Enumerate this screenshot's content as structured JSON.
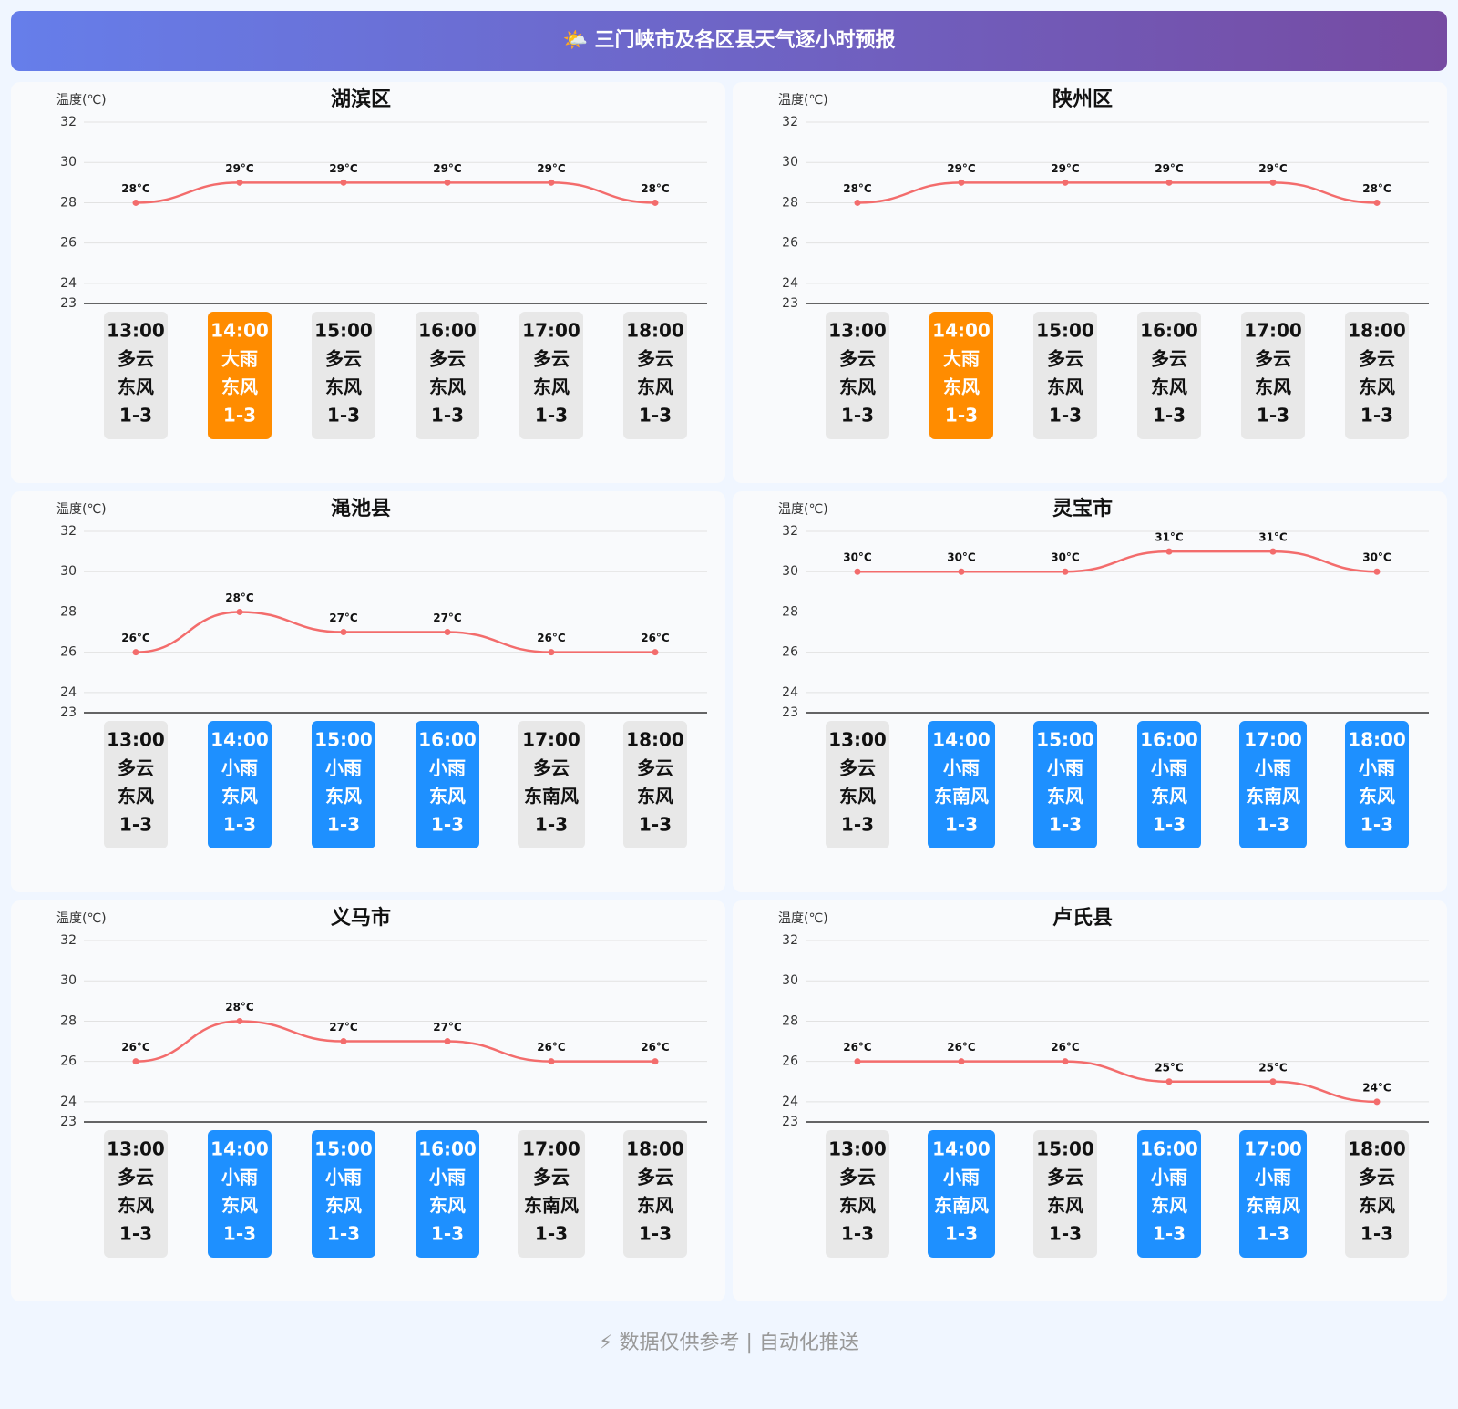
{
  "header": {
    "title": "🌤️ 三门峡市及各区县天气逐小时预报"
  },
  "chart_data": [
    {
      "type": "line",
      "title": "湖滨区",
      "y_label": "温度(℃)",
      "ylim": [
        23,
        32
      ],
      "yticks": [
        23,
        24,
        26,
        28,
        30,
        32
      ],
      "grid": true,
      "categories": [
        "13:00",
        "14:00",
        "15:00",
        "16:00",
        "17:00",
        "18:00"
      ],
      "series": [
        {
          "color": "#f36c6c",
          "values": [
            28,
            29,
            29,
            29,
            29,
            28
          ],
          "value_labels": [
            "28°C",
            "29°C",
            "29°C",
            "29°C",
            "29°C",
            "28°C"
          ]
        }
      ],
      "weather": [
        "多云",
        "大雨",
        "多云",
        "多云",
        "多云",
        "多云"
      ],
      "wind": [
        "东风",
        "东风",
        "东风",
        "东风",
        "东风",
        "东风"
      ],
      "level": [
        "1-3",
        "1-3",
        "1-3",
        "1-3",
        "1-3",
        "1-3"
      ],
      "card_colors": [
        "#e8e8e8",
        "#ff8c00",
        "#e8e8e8",
        "#e8e8e8",
        "#e8e8e8",
        "#e8e8e8"
      ]
    },
    {
      "type": "line",
      "title": "陕州区",
      "y_label": "温度(℃)",
      "ylim": [
        23,
        32
      ],
      "yticks": [
        23,
        24,
        26,
        28,
        30,
        32
      ],
      "grid": true,
      "categories": [
        "13:00",
        "14:00",
        "15:00",
        "16:00",
        "17:00",
        "18:00"
      ],
      "series": [
        {
          "color": "#f36c6c",
          "values": [
            28,
            29,
            29,
            29,
            29,
            28
          ],
          "value_labels": [
            "28°C",
            "29°C",
            "29°C",
            "29°C",
            "29°C",
            "28°C"
          ]
        }
      ],
      "weather": [
        "多云",
        "大雨",
        "多云",
        "多云",
        "多云",
        "多云"
      ],
      "wind": [
        "东风",
        "东风",
        "东风",
        "东风",
        "东风",
        "东风"
      ],
      "level": [
        "1-3",
        "1-3",
        "1-3",
        "1-3",
        "1-3",
        "1-3"
      ],
      "card_colors": [
        "#e8e8e8",
        "#ff8c00",
        "#e8e8e8",
        "#e8e8e8",
        "#e8e8e8",
        "#e8e8e8"
      ]
    },
    {
      "type": "line",
      "title": "渑池县",
      "y_label": "温度(℃)",
      "ylim": [
        23,
        32
      ],
      "yticks": [
        23,
        24,
        26,
        28,
        30,
        32
      ],
      "grid": true,
      "categories": [
        "13:00",
        "14:00",
        "15:00",
        "16:00",
        "17:00",
        "18:00"
      ],
      "series": [
        {
          "color": "#f36c6c",
          "values": [
            26,
            28,
            27,
            27,
            26,
            26
          ],
          "value_labels": [
            "26°C",
            "28°C",
            "27°C",
            "27°C",
            "26°C",
            "26°C"
          ]
        }
      ],
      "weather": [
        "多云",
        "小雨",
        "小雨",
        "小雨",
        "多云",
        "多云"
      ],
      "wind": [
        "东风",
        "东风",
        "东风",
        "东风",
        "东南风",
        "东风"
      ],
      "level": [
        "1-3",
        "1-3",
        "1-3",
        "1-3",
        "1-3",
        "1-3"
      ],
      "card_colors": [
        "#e8e8e8",
        "#1e90ff",
        "#1e90ff",
        "#1e90ff",
        "#e8e8e8",
        "#e8e8e8"
      ]
    },
    {
      "type": "line",
      "title": "灵宝市",
      "y_label": "温度(℃)",
      "ylim": [
        23,
        32
      ],
      "yticks": [
        23,
        24,
        26,
        28,
        30,
        32
      ],
      "grid": true,
      "categories": [
        "13:00",
        "14:00",
        "15:00",
        "16:00",
        "17:00",
        "18:00"
      ],
      "series": [
        {
          "color": "#f36c6c",
          "values": [
            30,
            30,
            30,
            31,
            31,
            30
          ],
          "value_labels": [
            "30°C",
            "30°C",
            "30°C",
            "31°C",
            "31°C",
            "30°C"
          ]
        }
      ],
      "weather": [
        "多云",
        "小雨",
        "小雨",
        "小雨",
        "小雨",
        "小雨"
      ],
      "wind": [
        "东风",
        "东南风",
        "东风",
        "东风",
        "东南风",
        "东风"
      ],
      "level": [
        "1-3",
        "1-3",
        "1-3",
        "1-3",
        "1-3",
        "1-3"
      ],
      "card_colors": [
        "#e8e8e8",
        "#1e90ff",
        "#1e90ff",
        "#1e90ff",
        "#1e90ff",
        "#1e90ff"
      ]
    },
    {
      "type": "line",
      "title": "义马市",
      "y_label": "温度(℃)",
      "ylim": [
        23,
        32
      ],
      "yticks": [
        23,
        24,
        26,
        28,
        30,
        32
      ],
      "grid": true,
      "categories": [
        "13:00",
        "14:00",
        "15:00",
        "16:00",
        "17:00",
        "18:00"
      ],
      "series": [
        {
          "color": "#f36c6c",
          "values": [
            26,
            28,
            27,
            27,
            26,
            26
          ],
          "value_labels": [
            "26°C",
            "28°C",
            "27°C",
            "27°C",
            "26°C",
            "26°C"
          ]
        }
      ],
      "weather": [
        "多云",
        "小雨",
        "小雨",
        "小雨",
        "多云",
        "多云"
      ],
      "wind": [
        "东风",
        "东风",
        "东风",
        "东风",
        "东南风",
        "东风"
      ],
      "level": [
        "1-3",
        "1-3",
        "1-3",
        "1-3",
        "1-3",
        "1-3"
      ],
      "card_colors": [
        "#e8e8e8",
        "#1e90ff",
        "#1e90ff",
        "#1e90ff",
        "#e8e8e8",
        "#e8e8e8"
      ]
    },
    {
      "type": "line",
      "title": "卢氏县",
      "y_label": "温度(℃)",
      "ylim": [
        23,
        32
      ],
      "yticks": [
        23,
        24,
        26,
        28,
        30,
        32
      ],
      "grid": true,
      "categories": [
        "13:00",
        "14:00",
        "15:00",
        "16:00",
        "17:00",
        "18:00"
      ],
      "series": [
        {
          "color": "#f36c6c",
          "values": [
            26,
            26,
            26,
            25,
            25,
            24
          ],
          "value_labels": [
            "26°C",
            "26°C",
            "26°C",
            "25°C",
            "25°C",
            "24°C"
          ]
        }
      ],
      "weather": [
        "多云",
        "小雨",
        "多云",
        "小雨",
        "小雨",
        "多云"
      ],
      "wind": [
        "东风",
        "东南风",
        "东风",
        "东风",
        "东南风",
        "东风"
      ],
      "level": [
        "1-3",
        "1-3",
        "1-3",
        "1-3",
        "1-3",
        "1-3"
      ],
      "card_colors": [
        "#e8e8e8",
        "#1e90ff",
        "#e8e8e8",
        "#1e90ff",
        "#1e90ff",
        "#e8e8e8"
      ]
    }
  ],
  "footer": {
    "text": "⚡ 数据仅供参考 | 自动化推送"
  }
}
